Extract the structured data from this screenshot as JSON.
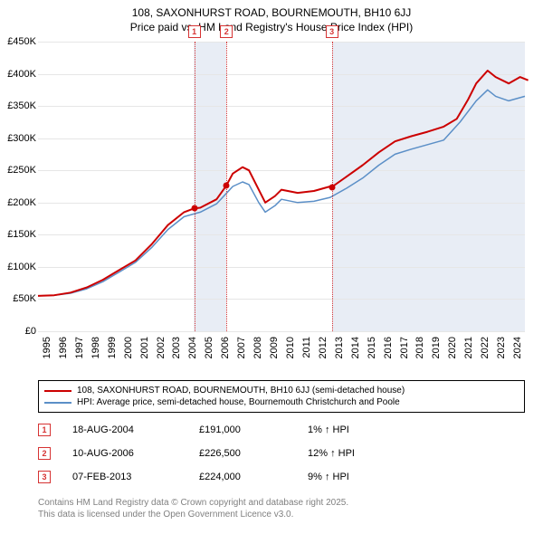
{
  "title": {
    "line1": "108, SAXONHURST ROAD, BOURNEMOUTH, BH10 6JJ",
    "line2": "Price paid vs. HM Land Registry's House Price Index (HPI)"
  },
  "chart": {
    "type": "line",
    "ylim": [
      0,
      450000
    ],
    "ytick_step": 50000,
    "yticks_labels": [
      "£0",
      "£50K",
      "£100K",
      "£150K",
      "£200K",
      "£250K",
      "£300K",
      "£350K",
      "£400K",
      "£450K"
    ],
    "xlim": [
      1995,
      2025
    ],
    "xticks": [
      1995,
      1996,
      1997,
      1998,
      1999,
      2000,
      2001,
      2002,
      2003,
      2004,
      2005,
      2006,
      2007,
      2008,
      2009,
      2010,
      2011,
      2012,
      2013,
      2014,
      2015,
      2016,
      2017,
      2018,
      2019,
      2020,
      2021,
      2022,
      2023,
      2024
    ],
    "grid_color": "#e6e6e6",
    "background_color": "#ffffff",
    "shade_color": "#e8edf5",
    "shade_ranges": [
      [
        2004.6,
        2006.6
      ],
      [
        2013.1,
        2025.2
      ]
    ],
    "vline_color": "#d63333",
    "vline_style": "dotted",
    "vlines": [
      2004.63,
      2006.61,
      2013.1
    ],
    "markers_top": [
      "1",
      "2",
      "3"
    ],
    "marker_box_border": "#d63333",
    "marker_box_bg": "#ffffff",
    "series": [
      {
        "name": "property",
        "label": "108, SAXONHURST ROAD, BOURNEMOUTH, BH10 6JJ (semi-detached house)",
        "color": "#cc0000",
        "width": 2,
        "points": [
          [
            1995.0,
            55000
          ],
          [
            1996.0,
            56000
          ],
          [
            1997.0,
            60000
          ],
          [
            1998.0,
            68000
          ],
          [
            1999.0,
            80000
          ],
          [
            2000.0,
            95000
          ],
          [
            2001.0,
            110000
          ],
          [
            2002.0,
            135000
          ],
          [
            2003.0,
            165000
          ],
          [
            2004.0,
            185000
          ],
          [
            2004.63,
            191000
          ],
          [
            2005.0,
            192000
          ],
          [
            2006.0,
            205000
          ],
          [
            2006.61,
            226500
          ],
          [
            2007.0,
            245000
          ],
          [
            2007.6,
            255000
          ],
          [
            2008.0,
            250000
          ],
          [
            2008.6,
            220000
          ],
          [
            2009.0,
            200000
          ],
          [
            2009.6,
            210000
          ],
          [
            2010.0,
            220000
          ],
          [
            2011.0,
            215000
          ],
          [
            2012.0,
            218000
          ],
          [
            2013.0,
            225000
          ],
          [
            2013.1,
            224000
          ],
          [
            2014.0,
            240000
          ],
          [
            2015.0,
            258000
          ],
          [
            2016.0,
            278000
          ],
          [
            2017.0,
            295000
          ],
          [
            2018.0,
            303000
          ],
          [
            2019.0,
            310000
          ],
          [
            2020.0,
            318000
          ],
          [
            2020.8,
            330000
          ],
          [
            2021.5,
            360000
          ],
          [
            2022.0,
            385000
          ],
          [
            2022.7,
            405000
          ],
          [
            2023.2,
            395000
          ],
          [
            2024.0,
            385000
          ],
          [
            2024.7,
            395000
          ],
          [
            2025.2,
            390000
          ]
        ]
      },
      {
        "name": "hpi",
        "label": "HPI: Average price, semi-detached house, Bournemouth Christchurch and Poole",
        "color": "#5b8fc7",
        "width": 1.5,
        "points": [
          [
            1995.0,
            55000
          ],
          [
            1996.0,
            56000
          ],
          [
            1997.0,
            59000
          ],
          [
            1998.0,
            66000
          ],
          [
            1999.0,
            77000
          ],
          [
            2000.0,
            92000
          ],
          [
            2001.0,
            107000
          ],
          [
            2002.0,
            130000
          ],
          [
            2003.0,
            158000
          ],
          [
            2004.0,
            178000
          ],
          [
            2005.0,
            185000
          ],
          [
            2006.0,
            198000
          ],
          [
            2007.0,
            225000
          ],
          [
            2007.6,
            232000
          ],
          [
            2008.0,
            228000
          ],
          [
            2008.6,
            200000
          ],
          [
            2009.0,
            185000
          ],
          [
            2009.6,
            195000
          ],
          [
            2010.0,
            205000
          ],
          [
            2011.0,
            200000
          ],
          [
            2012.0,
            202000
          ],
          [
            2013.0,
            208000
          ],
          [
            2014.0,
            222000
          ],
          [
            2015.0,
            238000
          ],
          [
            2016.0,
            258000
          ],
          [
            2017.0,
            275000
          ],
          [
            2018.0,
            283000
          ],
          [
            2019.0,
            290000
          ],
          [
            2020.0,
            297000
          ],
          [
            2021.0,
            325000
          ],
          [
            2022.0,
            358000
          ],
          [
            2022.7,
            375000
          ],
          [
            2023.2,
            365000
          ],
          [
            2024.0,
            358000
          ],
          [
            2025.0,
            365000
          ]
        ]
      }
    ],
    "sale_points": [
      {
        "x": 2004.63,
        "y": 191000,
        "color": "#cc0000"
      },
      {
        "x": 2006.61,
        "y": 226500,
        "color": "#cc0000"
      },
      {
        "x": 2013.1,
        "y": 224000,
        "color": "#cc0000"
      }
    ]
  },
  "legend": {
    "border_color": "#000000"
  },
  "sales": [
    {
      "n": "1",
      "date": "18-AUG-2004",
      "price": "£191,000",
      "hpi": "1% ↑ HPI"
    },
    {
      "n": "2",
      "date": "10-AUG-2006",
      "price": "£226,500",
      "hpi": "12% ↑ HPI"
    },
    {
      "n": "3",
      "date": "07-FEB-2013",
      "price": "£224,000",
      "hpi": "9% ↑ HPI"
    }
  ],
  "attribution": {
    "line1": "Contains HM Land Registry data © Crown copyright and database right 2025.",
    "line2": "This data is licensed under the Open Government Licence v3.0."
  }
}
